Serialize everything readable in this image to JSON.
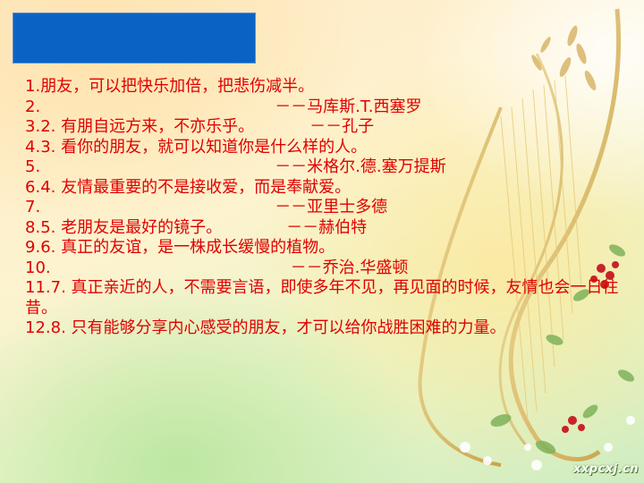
{
  "lines": [
    {
      "num": "1.",
      "text": "朋友，可以把快乐加倍，把悲伤减半。",
      "author": ""
    },
    {
      "num": "2.",
      "text": "",
      "author": "－－马库斯.T.西塞罗"
    },
    {
      "num": "3.",
      "text": "2. 有朋自远方来，不亦乐乎。",
      "author": "－－孔子"
    },
    {
      "num": "4.",
      "text": "3. 看你的朋友，就可以知道你是什么样的人。",
      "author": ""
    },
    {
      "num": "5.",
      "text": "",
      "author": "－－米格尔.德.塞万提斯"
    },
    {
      "num": "6.",
      "text": "4. 友情最重要的不是接收爱，而是奉献爱。",
      "author": ""
    },
    {
      "num": "7.",
      "text": "",
      "author": "－－亚里士多德"
    },
    {
      "num": "8.",
      "text": "5. 老朋友是最好的镜子。",
      "author": "－－赫伯特"
    },
    {
      "num": "9.",
      "text": "6. 真正的友谊，是一株成长缓慢的植物。",
      "author": ""
    },
    {
      "num": "10.",
      "text": "",
      "author": "－－乔治.华盛顿"
    },
    {
      "num": "11.",
      "text": "7. 真正亲近的人，不需要言语，即使多年不见，再见面的时候，友情也会一日往昔。",
      "author": ""
    },
    {
      "num": "12.",
      "text": "8. 只有能够分享内心感受的朋友，才可以给你战胜困难的力量。",
      "author": ""
    }
  ],
  "watermark": "xxpcxj.cn",
  "colors": {
    "text": "#e00000",
    "title_box": "#0a63c4"
  }
}
